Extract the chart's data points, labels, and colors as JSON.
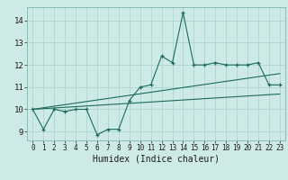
{
  "title": "",
  "xlabel": "Humidex (Indice chaleur)",
  "bg_color": "#ceeae7",
  "grid_color": "#aed4d0",
  "line_color": "#1a6b5e",
  "x_data": [
    0,
    1,
    2,
    3,
    4,
    5,
    6,
    7,
    8,
    9,
    10,
    11,
    12,
    13,
    14,
    15,
    16,
    17,
    18,
    19,
    20,
    21,
    22,
    23
  ],
  "y_main": [
    10.0,
    9.1,
    10.0,
    9.9,
    10.0,
    10.0,
    8.85,
    9.1,
    9.1,
    10.4,
    11.0,
    11.1,
    12.4,
    12.1,
    14.35,
    12.0,
    12.0,
    12.1,
    12.0,
    12.0,
    12.0,
    12.1,
    11.1,
    11.1
  ],
  "y_trend1": [
    10.0,
    10.07,
    10.14,
    10.21,
    10.28,
    10.35,
    10.42,
    10.49,
    10.56,
    10.63,
    10.7,
    10.77,
    10.84,
    10.91,
    10.98,
    11.05,
    11.12,
    11.19,
    11.26,
    11.33,
    11.4,
    11.47,
    11.54,
    11.61
  ],
  "y_trend2": [
    10.0,
    10.03,
    10.06,
    10.09,
    10.12,
    10.15,
    10.18,
    10.21,
    10.24,
    10.27,
    10.3,
    10.33,
    10.36,
    10.39,
    10.42,
    10.45,
    10.48,
    10.51,
    10.54,
    10.57,
    10.6,
    10.63,
    10.66,
    10.69
  ],
  "ylim": [
    8.6,
    14.6
  ],
  "yticks": [
    9,
    10,
    11,
    12,
    13,
    14
  ],
  "xlim": [
    -0.5,
    23.5
  ],
  "xtick_labels": [
    "0",
    "1",
    "2",
    "3",
    "4",
    "5",
    "6",
    "7",
    "8",
    "9",
    "10",
    "11",
    "12",
    "13",
    "14",
    "15",
    "16",
    "17",
    "18",
    "19",
    "20",
    "21",
    "22",
    "23"
  ]
}
